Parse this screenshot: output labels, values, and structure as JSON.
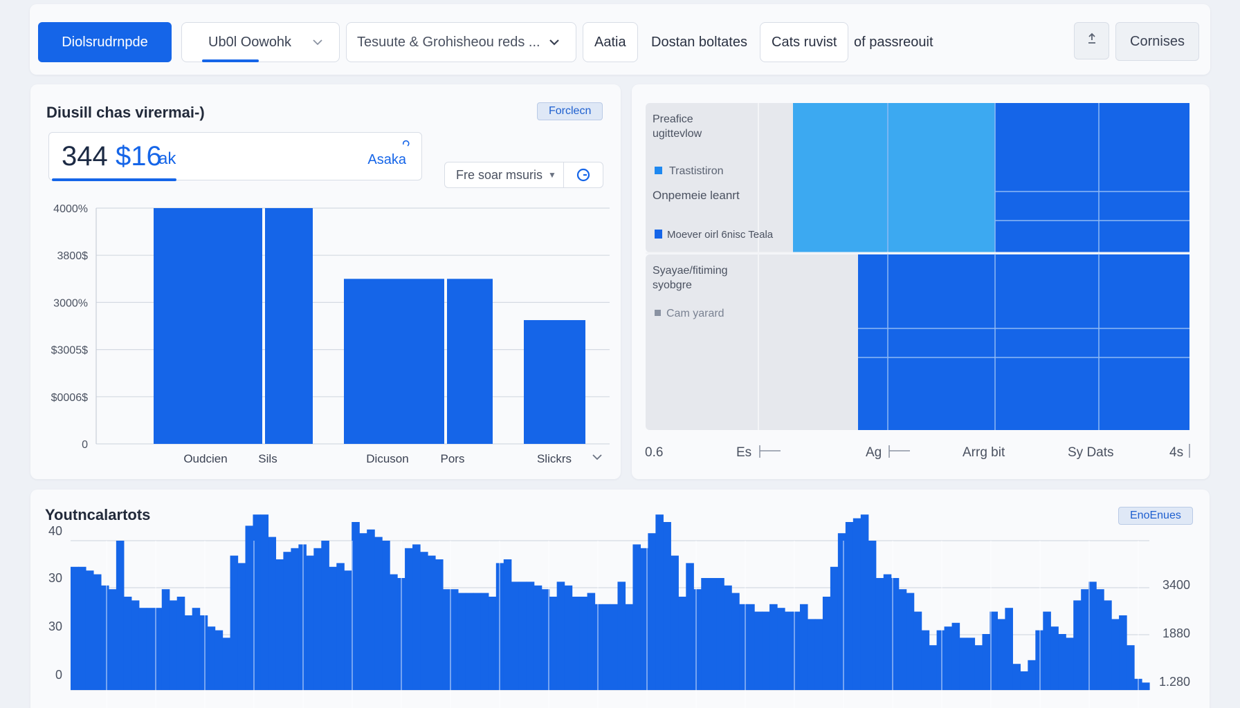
{
  "colors": {
    "accent": "#1565e8",
    "accent_light": "#3ca9f1",
    "grid": "#d4d9e2",
    "panel_bg": "#e7e9ee"
  },
  "toolbar": {
    "primary_button": "Diolsrudrnpde",
    "select_1": "Ub0l Oowohk",
    "select_2": "Tesuute & Grohisheou reds ...",
    "tab_1": "Aatia",
    "tab_2": "Dostan boltates",
    "tab_3": "Cats ruvist",
    "tab_4": "of passreouit",
    "icon_button": "upload-icon",
    "secondary_button": "Cornises"
  },
  "left_card": {
    "title": "Diusill chas virermai-)",
    "tag": "Forclecn",
    "stat_number": "344",
    "stat_amount": "$16",
    "stat_unit": "ak",
    "stat_right": "Asaka",
    "filter_label": "Fre soar msuris"
  },
  "right_card": {
    "legend_top_line1": "Preafice",
    "legend_top_line2": "ugittevlow",
    "legend_item_1": "Trastistiron",
    "legend_note": "Onpemeie leanrt",
    "legend_item_2": "Moever oirl 6nisc Teala",
    "legend_bottom_line1": "Syayae/fitiming",
    "legend_bottom_line2": "syobgre",
    "legend_item_3": "Cam yarard",
    "x_labels": [
      "0.6",
      "Es",
      "Ag",
      "Arrg bit",
      "Sy Dats",
      "4s"
    ]
  },
  "bottom_card": {
    "title": "Youtncalartots",
    "tag": "EnoEnues"
  },
  "chart_data": [
    {
      "type": "bar",
      "title": "",
      "categories": [
        "Oudcien",
        "Sils",
        "Dicuson",
        "Pors",
        "Slickrs"
      ],
      "values": [
        4000,
        4000,
        2800,
        2800,
        2100
      ],
      "y_tick_labels": [
        "0",
        "$0006$",
        "$3005$",
        "3000%",
        "3800$",
        "4000%"
      ],
      "ylim": [
        0,
        4000
      ],
      "grid": true
    },
    {
      "type": "bar",
      "title": "",
      "y_tick_labels_left": [
        "0",
        "30",
        "30",
        "40"
      ],
      "y_tick_labels_right": [
        "1.280",
        "1880",
        "3400"
      ],
      "ylim": [
        0,
        50
      ],
      "grid": true,
      "values": [
        33,
        33,
        32,
        31,
        28,
        27,
        40,
        25,
        24,
        22,
        22,
        22,
        27,
        24,
        25,
        20,
        22,
        20,
        17,
        16,
        14,
        36,
        34,
        44,
        47,
        47,
        41,
        35,
        37,
        38,
        39,
        36,
        38,
        40,
        33,
        34,
        32,
        45,
        42,
        43,
        41,
        40,
        31,
        30,
        38,
        39,
        37,
        36,
        35,
        27,
        27,
        26,
        26,
        26,
        26,
        25,
        34,
        35,
        29,
        29,
        29,
        28,
        27,
        25,
        29,
        28,
        25,
        25,
        26,
        23,
        23,
        23,
        29,
        23,
        39,
        38,
        42,
        47,
        45,
        36,
        25,
        34,
        27,
        30,
        30,
        30,
        28,
        26,
        23,
        23,
        21,
        21,
        23,
        22,
        21,
        21,
        23,
        19,
        19,
        25,
        33,
        42,
        45,
        46,
        47,
        40,
        30,
        31,
        30,
        27,
        26,
        21,
        16,
        12,
        16,
        17,
        18,
        14,
        14,
        12,
        15,
        21,
        19,
        22,
        7,
        5,
        8,
        16,
        21,
        17,
        15,
        14,
        24,
        27,
        29,
        27,
        24,
        19,
        20,
        12,
        3,
        2
      ]
    }
  ]
}
